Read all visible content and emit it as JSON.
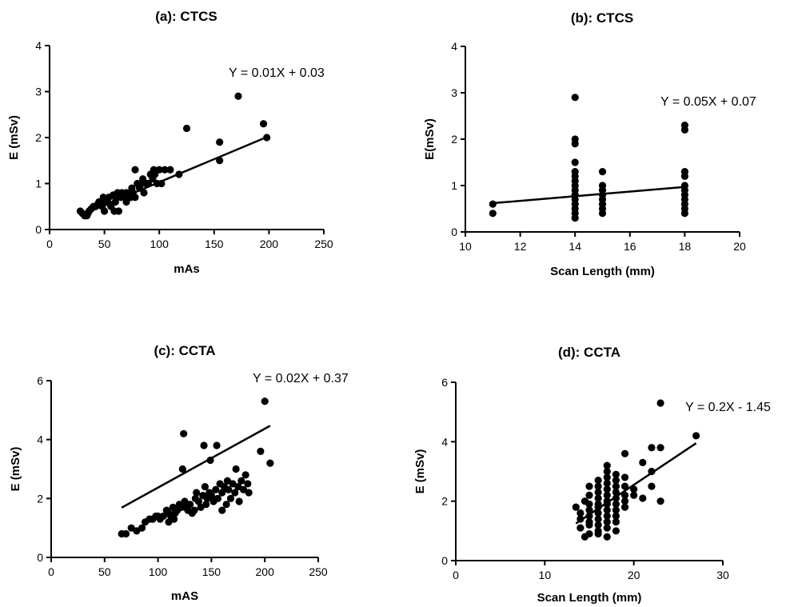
{
  "chart_data": [
    {
      "type": "scatter",
      "title": "(a): CTCS",
      "xlabel": "mAs",
      "ylabel": "E (mSv)",
      "xlim": [
        0,
        250
      ],
      "ylim": [
        0,
        4
      ],
      "xticks": [
        "0",
        "50",
        "100",
        "150",
        "200",
        "250"
      ],
      "yticks": [
        "0",
        "1",
        "2",
        "3",
        "4"
      ],
      "grid": false,
      "equation": "Y = 0.01X + 0.03",
      "fit": {
        "slope": 0.01,
        "intercept": 0.03,
        "x": [
          28,
          200
        ]
      },
      "points": [
        [
          28,
          0.4
        ],
        [
          30,
          0.35
        ],
        [
          32,
          0.3
        ],
        [
          34,
          0.3
        ],
        [
          35,
          0.35
        ],
        [
          36,
          0.4
        ],
        [
          38,
          0.45
        ],
        [
          40,
          0.5
        ],
        [
          42,
          0.5
        ],
        [
          44,
          0.55
        ],
        [
          45,
          0.6
        ],
        [
          46,
          0.6
        ],
        [
          48,
          0.5
        ],
        [
          49,
          0.7
        ],
        [
          50,
          0.6
        ],
        [
          50,
          0.4
        ],
        [
          52,
          0.65
        ],
        [
          54,
          0.7
        ],
        [
          55,
          0.55
        ],
        [
          56,
          0.5
        ],
        [
          58,
          0.75
        ],
        [
          59,
          0.4
        ],
        [
          60,
          0.6
        ],
        [
          60,
          0.7
        ],
        [
          62,
          0.8
        ],
        [
          63,
          0.4
        ],
        [
          65,
          0.7
        ],
        [
          66,
          0.8
        ],
        [
          68,
          0.7
        ],
        [
          70,
          0.8
        ],
        [
          70,
          0.6
        ],
        [
          72,
          0.75
        ],
        [
          74,
          0.7
        ],
        [
          75,
          0.9
        ],
        [
          76,
          0.8
        ],
        [
          78,
          0.7
        ],
        [
          78,
          1.3
        ],
        [
          80,
          1.0
        ],
        [
          82,
          0.9
        ],
        [
          84,
          1.0
        ],
        [
          85,
          1.1
        ],
        [
          86,
          0.8
        ],
        [
          88,
          1.0
        ],
        [
          90,
          1.0
        ],
        [
          92,
          1.2
        ],
        [
          94,
          1.1
        ],
        [
          95,
          1.3
        ],
        [
          96,
          1.2
        ],
        [
          98,
          1.0
        ],
        [
          100,
          1.3
        ],
        [
          102,
          1.0
        ],
        [
          105,
          1.3
        ],
        [
          110,
          1.3
        ],
        [
          118,
          1.2
        ],
        [
          125,
          2.2
        ],
        [
          155,
          1.9
        ],
        [
          155,
          1.5
        ],
        [
          172,
          2.9
        ],
        [
          195,
          2.3
        ],
        [
          198,
          2.0
        ]
      ]
    },
    {
      "type": "scatter",
      "title": "(b): CTCS",
      "xlabel": "Scan Length (mm)",
      "ylabel": "E(mSv)",
      "xlim": [
        10,
        20
      ],
      "ylim": [
        0,
        4
      ],
      "xticks": [
        "10",
        "12",
        "14",
        "16",
        "18",
        "20"
      ],
      "yticks": [
        "0",
        "1",
        "2",
        "3",
        "4"
      ],
      "grid": false,
      "equation": "Y = 0.05X + 0.07",
      "fit": {
        "slope": 0.05,
        "intercept": 0.07,
        "x": [
          11,
          18
        ]
      },
      "points": [
        [
          11,
          0.6
        ],
        [
          11,
          0.4
        ],
        [
          14,
          2.9
        ],
        [
          14,
          2.0
        ],
        [
          14,
          1.9
        ],
        [
          14,
          1.5
        ],
        [
          14,
          1.3
        ],
        [
          14,
          1.2
        ],
        [
          14,
          1.1
        ],
        [
          14,
          1.0
        ],
        [
          14,
          0.9
        ],
        [
          14,
          0.8
        ],
        [
          14,
          0.7
        ],
        [
          14,
          0.6
        ],
        [
          14,
          0.5
        ],
        [
          14,
          0.4
        ],
        [
          14,
          0.3
        ],
        [
          15,
          1.3
        ],
        [
          15,
          1.0
        ],
        [
          15,
          0.9
        ],
        [
          15,
          0.8
        ],
        [
          15,
          0.7
        ],
        [
          15,
          0.6
        ],
        [
          15,
          0.5
        ],
        [
          15,
          0.4
        ],
        [
          18,
          2.3
        ],
        [
          18,
          2.2
        ],
        [
          18,
          1.3
        ],
        [
          18,
          1.2
        ],
        [
          18,
          1.0
        ],
        [
          18,
          0.9
        ],
        [
          18,
          0.8
        ],
        [
          18,
          0.7
        ],
        [
          18,
          0.6
        ],
        [
          18,
          0.5
        ],
        [
          18,
          0.4
        ]
      ]
    },
    {
      "type": "scatter",
      "title": "(c): CCTA",
      "xlabel": "mAS",
      "ylabel": "E (mSv)",
      "xlim": [
        0,
        250
      ],
      "ylim": [
        0,
        6
      ],
      "xticks": [
        "0",
        "50",
        "100",
        "150",
        "200",
        "250"
      ],
      "yticks": [
        "0",
        "2",
        "4",
        "6"
      ],
      "grid": false,
      "equation": "Y = 0.02X + 0.37",
      "fit": {
        "slope": 0.02,
        "intercept": 0.37,
        "x": [
          66,
          205
        ]
      },
      "points": [
        [
          66,
          0.8
        ],
        [
          70,
          0.8
        ],
        [
          75,
          1.0
        ],
        [
          80,
          0.9
        ],
        [
          85,
          1.0
        ],
        [
          88,
          1.2
        ],
        [
          92,
          1.3
        ],
        [
          95,
          1.3
        ],
        [
          98,
          1.4
        ],
        [
          100,
          1.4
        ],
        [
          102,
          1.3
        ],
        [
          105,
          1.4
        ],
        [
          108,
          1.6
        ],
        [
          110,
          1.5
        ],
        [
          110,
          1.2
        ],
        [
          112,
          1.4
        ],
        [
          114,
          1.7
        ],
        [
          115,
          1.3
        ],
        [
          116,
          1.5
        ],
        [
          118,
          1.6
        ],
        [
          120,
          1.8
        ],
        [
          122,
          1.7
        ],
        [
          123,
          3.0
        ],
        [
          124,
          4.2
        ],
        [
          125,
          1.9
        ],
        [
          126,
          1.7
        ],
        [
          128,
          1.6
        ],
        [
          130,
          1.8
        ],
        [
          132,
          1.5
        ],
        [
          134,
          1.6
        ],
        [
          135,
          2.0
        ],
        [
          136,
          2.2
        ],
        [
          138,
          1.9
        ],
        [
          140,
          1.7
        ],
        [
          142,
          2.1
        ],
        [
          143,
          3.8
        ],
        [
          144,
          2.4
        ],
        [
          145,
          1.8
        ],
        [
          146,
          2.0
        ],
        [
          148,
          2.2
        ],
        [
          149,
          3.3
        ],
        [
          150,
          2.1
        ],
        [
          152,
          1.9
        ],
        [
          154,
          2.3
        ],
        [
          155,
          3.8
        ],
        [
          156,
          2.0
        ],
        [
          158,
          2.5
        ],
        [
          160,
          1.6
        ],
        [
          160,
          2.2
        ],
        [
          162,
          2.4
        ],
        [
          164,
          1.8
        ],
        [
          165,
          2.6
        ],
        [
          166,
          2.3
        ],
        [
          168,
          2.0
        ],
        [
          170,
          2.5
        ],
        [
          172,
          2.2
        ],
        [
          173,
          3.0
        ],
        [
          175,
          2.4
        ],
        [
          176,
          1.9
        ],
        [
          178,
          2.6
        ],
        [
          180,
          2.3
        ],
        [
          182,
          2.8
        ],
        [
          184,
          2.5
        ],
        [
          185,
          2.2
        ],
        [
          196,
          3.6
        ],
        [
          200,
          5.3
        ],
        [
          205,
          3.2
        ]
      ]
    },
    {
      "type": "scatter",
      "title": "(d): CCTA",
      "xlabel": "Scan Length (mm)",
      "ylabel": "E (mSv)",
      "xlim": [
        0,
        30
      ],
      "ylim": [
        0,
        6
      ],
      "xticks": [
        "0",
        "10",
        "20",
        "30"
      ],
      "yticks": [
        "0",
        "2",
        "4",
        "6"
      ],
      "grid": false,
      "equation": "Y = 0.2X - 1.45",
      "fit": {
        "slope": 0.2,
        "intercept": -1.45,
        "x": [
          13.5,
          27
        ]
      },
      "points": [
        [
          13.5,
          1.8
        ],
        [
          14,
          1.6
        ],
        [
          14,
          1.4
        ],
        [
          14,
          1.1
        ],
        [
          14.5,
          2.0
        ],
        [
          14.5,
          0.8
        ],
        [
          15,
          2.5
        ],
        [
          15,
          2.2
        ],
        [
          15,
          1.9
        ],
        [
          15,
          1.7
        ],
        [
          15,
          1.5
        ],
        [
          15,
          1.3
        ],
        [
          15,
          1.2
        ],
        [
          15,
          0.9
        ],
        [
          16,
          2.7
        ],
        [
          16,
          2.5
        ],
        [
          16,
          2.3
        ],
        [
          16,
          2.1
        ],
        [
          16,
          1.9
        ],
        [
          16,
          1.8
        ],
        [
          16,
          1.6
        ],
        [
          16,
          1.4
        ],
        [
          16,
          1.2
        ],
        [
          16,
          1.0
        ],
        [
          16,
          0.9
        ],
        [
          17,
          3.2
        ],
        [
          17,
          3.0
        ],
        [
          17,
          2.8
        ],
        [
          17,
          2.6
        ],
        [
          17,
          2.4
        ],
        [
          17,
          2.2
        ],
        [
          17,
          2.0
        ],
        [
          17,
          1.9
        ],
        [
          17,
          1.7
        ],
        [
          17,
          1.5
        ],
        [
          17,
          1.3
        ],
        [
          17,
          1.1
        ],
        [
          17,
          0.8
        ],
        [
          18,
          2.9
        ],
        [
          18,
          2.7
        ],
        [
          18,
          2.5
        ],
        [
          18,
          2.3
        ],
        [
          18,
          2.1
        ],
        [
          18,
          1.9
        ],
        [
          18,
          1.7
        ],
        [
          18,
          1.5
        ],
        [
          18,
          1.3
        ],
        [
          18,
          1.0
        ],
        [
          19,
          3.6
        ],
        [
          19,
          2.8
        ],
        [
          19,
          2.5
        ],
        [
          19,
          2.2
        ],
        [
          19,
          2.0
        ],
        [
          19,
          1.8
        ],
        [
          20,
          2.4
        ],
        [
          20,
          2.2
        ],
        [
          21,
          3.3
        ],
        [
          21,
          2.1
        ],
        [
          22,
          3.8
        ],
        [
          22,
          3.0
        ],
        [
          22,
          2.5
        ],
        [
          23,
          5.3
        ],
        [
          23,
          3.8
        ],
        [
          23,
          2.0
        ],
        [
          27,
          4.2
        ]
      ]
    }
  ]
}
